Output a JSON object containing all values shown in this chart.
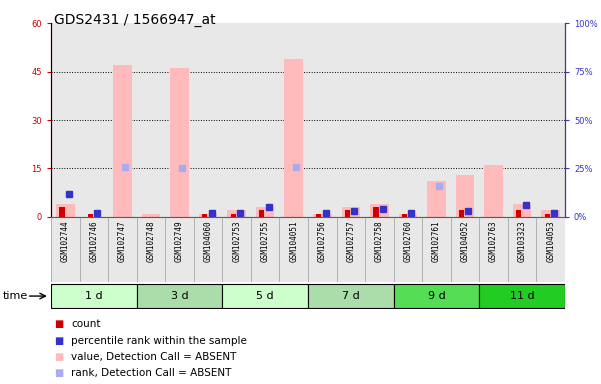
{
  "title": "GDS2431 / 1566947_at",
  "samples": [
    "GSM102744",
    "GSM102746",
    "GSM102747",
    "GSM102748",
    "GSM102749",
    "GSM104060",
    "GSM102753",
    "GSM102755",
    "GSM104051",
    "GSM102756",
    "GSM102757",
    "GSM102758",
    "GSM102760",
    "GSM102761",
    "GSM104052",
    "GSM102763",
    "GSM103323",
    "GSM104053"
  ],
  "groups": [
    {
      "label": "1 d",
      "indices": [
        0,
        1,
        2
      ],
      "color": "#ccffcc"
    },
    {
      "label": "3 d",
      "indices": [
        3,
        4,
        5
      ],
      "color": "#aaddaa"
    },
    {
      "label": "5 d",
      "indices": [
        6,
        7,
        8
      ],
      "color": "#ccffcc"
    },
    {
      "label": "7 d",
      "indices": [
        9,
        10,
        11
      ],
      "color": "#aaddaa"
    },
    {
      "label": "9 d",
      "indices": [
        12,
        13,
        14
      ],
      "color": "#55dd55"
    },
    {
      "label": "11 d",
      "indices": [
        15,
        16,
        17
      ],
      "color": "#22cc22"
    }
  ],
  "count": [
    3,
    1,
    0,
    0,
    0,
    1,
    1,
    2,
    0,
    1,
    2,
    3,
    1,
    0,
    2,
    0,
    2,
    1
  ],
  "percentile_rank": [
    12,
    2,
    0,
    0,
    0,
    2,
    2,
    5,
    0,
    2,
    3,
    4,
    2,
    0,
    3,
    0,
    6,
    2
  ],
  "value_absent": [
    4,
    0,
    47,
    1,
    46,
    1,
    2,
    3,
    49,
    1,
    3,
    4,
    1,
    11,
    13,
    16,
    4,
    2
  ],
  "rank_absent": [
    0,
    0,
    26,
    0,
    25,
    0,
    0,
    0,
    26,
    0,
    0,
    0,
    0,
    16,
    0,
    0,
    0,
    0
  ],
  "ylim_left": [
    0,
    60
  ],
  "ylim_right": [
    0,
    100
  ],
  "yticks_left": [
    0,
    15,
    30,
    45,
    60
  ],
  "yticks_right": [
    0,
    25,
    50,
    75,
    100
  ],
  "ytick_labels_left": [
    "0",
    "15",
    "30",
    "45",
    "60"
  ],
  "ytick_labels_right": [
    "0%",
    "25%",
    "50%",
    "75%",
    "100%"
  ],
  "colors": {
    "count": "#cc0000",
    "percentile_rank": "#3333cc",
    "value_absent": "#ffbbbb",
    "rank_absent": "#aaaaee",
    "axis_left": "#cc0000",
    "axis_right": "#3333cc",
    "plot_bg": "#ffffff",
    "sample_bg": "#cccccc",
    "group_border": "#000000"
  },
  "legend_items": [
    {
      "color": "#cc0000",
      "label": "count"
    },
    {
      "color": "#3333cc",
      "label": "percentile rank within the sample"
    },
    {
      "color": "#ffbbbb",
      "label": "value, Detection Call = ABSENT"
    },
    {
      "color": "#aaaaee",
      "label": "rank, Detection Call = ABSENT"
    }
  ],
  "time_label": "time",
  "title_fontsize": 10,
  "tick_fontsize": 6,
  "legend_fontsize": 7.5
}
